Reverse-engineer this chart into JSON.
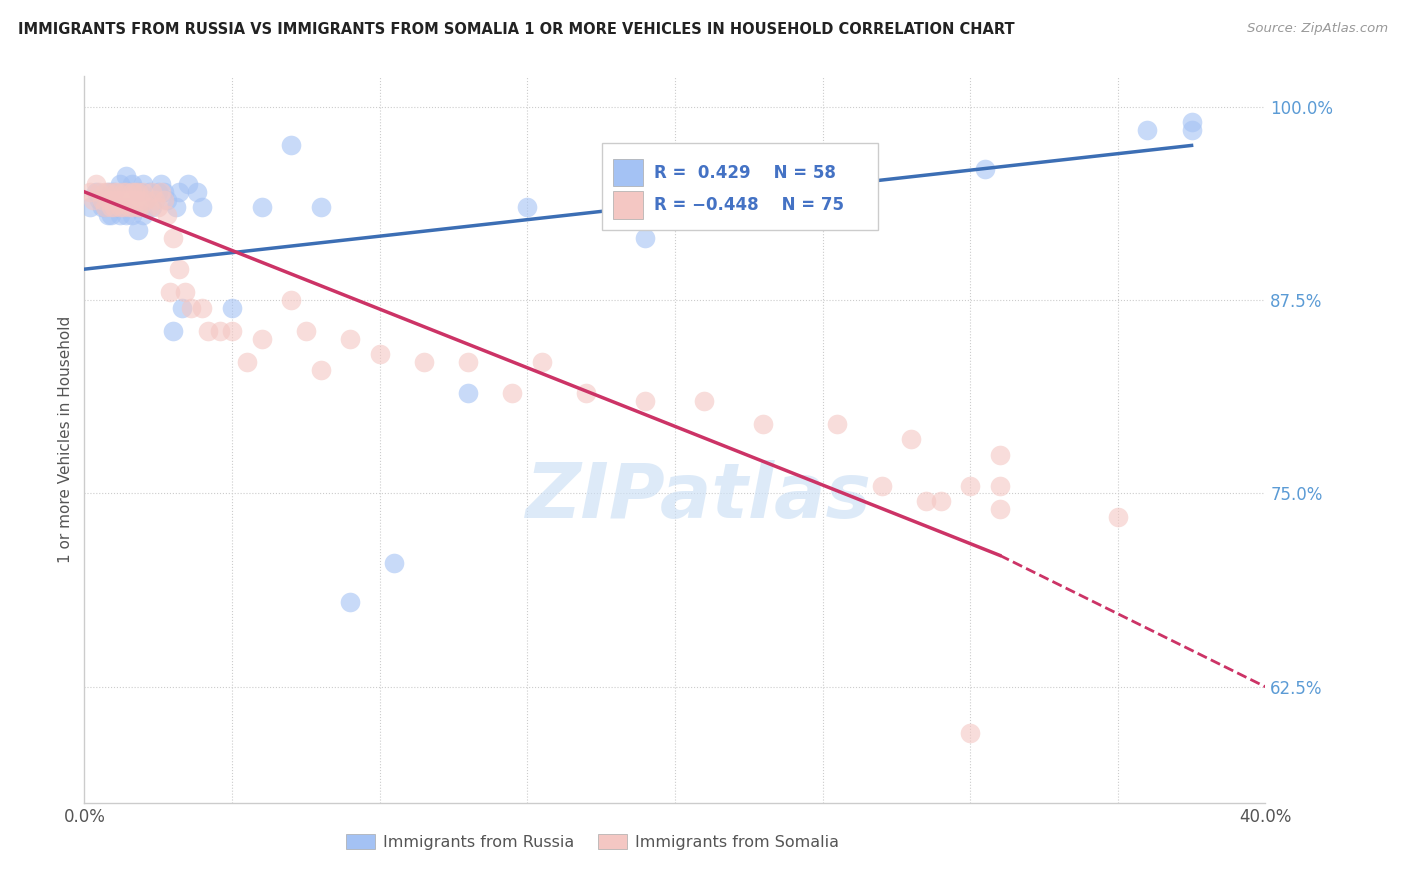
{
  "title": "IMMIGRANTS FROM RUSSIA VS IMMIGRANTS FROM SOMALIA 1 OR MORE VEHICLES IN HOUSEHOLD CORRELATION CHART",
  "source": "Source: ZipAtlas.com",
  "ylabel": "1 or more Vehicles in Household",
  "xlim": [
    0.0,
    0.4
  ],
  "ylim": [
    0.55,
    1.02
  ],
  "yticks": [
    0.625,
    0.75,
    0.875,
    1.0
  ],
  "ytick_labels": [
    "62.5%",
    "75.0%",
    "87.5%",
    "100.0%"
  ],
  "russia_R": 0.429,
  "russia_N": 58,
  "somalia_R": -0.448,
  "somalia_N": 75,
  "russia_color": "#a4c2f4",
  "somalia_color": "#f4c7c3",
  "russia_line_color": "#3c6eb4",
  "somalia_line_color": "#cc3366",
  "russia_scatter_x": [
    0.002,
    0.004,
    0.005,
    0.006,
    0.007,
    0.008,
    0.008,
    0.009,
    0.009,
    0.01,
    0.01,
    0.011,
    0.012,
    0.012,
    0.013,
    0.013,
    0.014,
    0.014,
    0.015,
    0.015,
    0.016,
    0.016,
    0.017,
    0.018,
    0.018,
    0.019,
    0.02,
    0.02,
    0.021,
    0.022,
    0.023,
    0.024,
    0.025,
    0.026,
    0.027,
    0.028,
    0.03,
    0.031,
    0.032,
    0.033,
    0.035,
    0.038,
    0.04,
    0.05,
    0.06,
    0.07,
    0.08,
    0.09,
    0.105,
    0.13,
    0.15,
    0.19,
    0.22,
    0.245,
    0.305,
    0.36,
    0.375,
    0.375
  ],
  "russia_scatter_y": [
    0.935,
    0.945,
    0.94,
    0.935,
    0.935,
    0.945,
    0.93,
    0.93,
    0.945,
    0.935,
    0.945,
    0.935,
    0.95,
    0.93,
    0.935,
    0.945,
    0.93,
    0.955,
    0.935,
    0.945,
    0.93,
    0.95,
    0.935,
    0.92,
    0.945,
    0.945,
    0.93,
    0.95,
    0.94,
    0.945,
    0.935,
    0.94,
    0.945,
    0.95,
    0.945,
    0.94,
    0.855,
    0.935,
    0.945,
    0.87,
    0.95,
    0.945,
    0.935,
    0.87,
    0.935,
    0.975,
    0.935,
    0.68,
    0.705,
    0.815,
    0.935,
    0.915,
    0.955,
    0.96,
    0.96,
    0.985,
    0.99,
    0.985
  ],
  "somalia_scatter_x": [
    0.002,
    0.003,
    0.004,
    0.005,
    0.006,
    0.007,
    0.007,
    0.008,
    0.008,
    0.009,
    0.009,
    0.01,
    0.01,
    0.011,
    0.011,
    0.012,
    0.012,
    0.013,
    0.013,
    0.014,
    0.014,
    0.015,
    0.015,
    0.016,
    0.016,
    0.017,
    0.017,
    0.018,
    0.018,
    0.019,
    0.019,
    0.02,
    0.021,
    0.022,
    0.023,
    0.024,
    0.025,
    0.026,
    0.027,
    0.028,
    0.029,
    0.03,
    0.032,
    0.034,
    0.036,
    0.04,
    0.042,
    0.046,
    0.05,
    0.055,
    0.06,
    0.07,
    0.075,
    0.08,
    0.09,
    0.1,
    0.115,
    0.13,
    0.145,
    0.155,
    0.17,
    0.19,
    0.21,
    0.23,
    0.255,
    0.28,
    0.31,
    0.27,
    0.3,
    0.31,
    0.285,
    0.29,
    0.31,
    0.35,
    0.3
  ],
  "somalia_scatter_y": [
    0.945,
    0.94,
    0.95,
    0.945,
    0.94,
    0.935,
    0.945,
    0.94,
    0.945,
    0.935,
    0.94,
    0.945,
    0.935,
    0.94,
    0.945,
    0.935,
    0.94,
    0.945,
    0.935,
    0.94,
    0.945,
    0.935,
    0.94,
    0.945,
    0.935,
    0.94,
    0.945,
    0.935,
    0.945,
    0.94,
    0.935,
    0.945,
    0.94,
    0.935,
    0.945,
    0.94,
    0.935,
    0.945,
    0.94,
    0.93,
    0.88,
    0.915,
    0.895,
    0.88,
    0.87,
    0.87,
    0.855,
    0.855,
    0.855,
    0.835,
    0.85,
    0.875,
    0.855,
    0.83,
    0.85,
    0.84,
    0.835,
    0.835,
    0.815,
    0.835,
    0.815,
    0.81,
    0.81,
    0.795,
    0.795,
    0.785,
    0.775,
    0.755,
    0.755,
    0.755,
    0.745,
    0.745,
    0.74,
    0.735,
    0.595
  ]
}
